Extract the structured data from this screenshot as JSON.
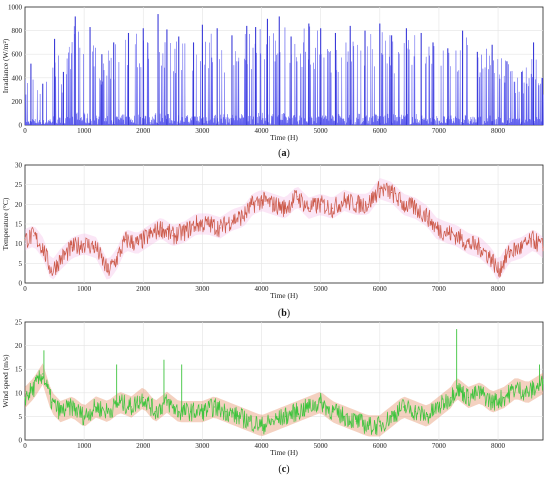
{
  "chart_data": [
    {
      "id": "a",
      "type": "area",
      "caption": "(a)",
      "caption_letter": "a",
      "xlabel": "Time (H)",
      "ylabel": "Irradiance (W/m²)",
      "xlim": [
        0,
        8760
      ],
      "ylim": [
        0,
        1000
      ],
      "xticks": [
        0,
        1000,
        2000,
        3000,
        4000,
        5000,
        6000,
        7000,
        8000
      ],
      "yticks": [
        0,
        200,
        400,
        600,
        800,
        1000
      ],
      "grid": true,
      "color": "#5555ee",
      "daily_peaks": [
        {
          "x": 100,
          "y": 520
        },
        {
          "x": 300,
          "y": 350
        },
        {
          "x": 500,
          "y": 730
        },
        {
          "x": 650,
          "y": 450
        },
        {
          "x": 850,
          "y": 920
        },
        {
          "x": 1100,
          "y": 830
        },
        {
          "x": 1300,
          "y": 600
        },
        {
          "x": 1500,
          "y": 700
        },
        {
          "x": 1750,
          "y": 780
        },
        {
          "x": 2000,
          "y": 820
        },
        {
          "x": 2250,
          "y": 940
        },
        {
          "x": 2400,
          "y": 810
        },
        {
          "x": 2600,
          "y": 750
        },
        {
          "x": 2850,
          "y": 700
        },
        {
          "x": 3000,
          "y": 850
        },
        {
          "x": 3250,
          "y": 820
        },
        {
          "x": 3500,
          "y": 760
        },
        {
          "x": 3750,
          "y": 840
        },
        {
          "x": 3900,
          "y": 830
        },
        {
          "x": 4100,
          "y": 900
        },
        {
          "x": 4300,
          "y": 920
        },
        {
          "x": 4500,
          "y": 750
        },
        {
          "x": 4800,
          "y": 860
        },
        {
          "x": 5000,
          "y": 820
        },
        {
          "x": 5250,
          "y": 780
        },
        {
          "x": 5500,
          "y": 840
        },
        {
          "x": 5750,
          "y": 800
        },
        {
          "x": 6000,
          "y": 860
        },
        {
          "x": 6200,
          "y": 760
        },
        {
          "x": 6450,
          "y": 820
        },
        {
          "x": 6700,
          "y": 780
        },
        {
          "x": 6900,
          "y": 700
        },
        {
          "x": 7150,
          "y": 650
        },
        {
          "x": 7400,
          "y": 800
        },
        {
          "x": 7650,
          "y": 620
        },
        {
          "x": 7900,
          "y": 680
        },
        {
          "x": 8150,
          "y": 540
        },
        {
          "x": 8400,
          "y": 450
        },
        {
          "x": 8600,
          "y": 700
        },
        {
          "x": 8750,
          "y": 400
        }
      ]
    },
    {
      "id": "b",
      "type": "line",
      "caption": "(b)",
      "caption_letter": "b",
      "xlabel": "Time (H)",
      "ylabel": "Temperature (°C)",
      "xlim": [
        0,
        8760
      ],
      "ylim": [
        0,
        30
      ],
      "xticks": [
        0,
        1000,
        2000,
        3000,
        4000,
        5000,
        6000,
        7000,
        8000
      ],
      "yticks": [
        0,
        5,
        10,
        15,
        20,
        25,
        30
      ],
      "grid": true,
      "color": "#cc5a4a",
      "envelope_color": "#f3b8e4",
      "series": [
        {
          "x": 0,
          "y": 11
        },
        {
          "x": 150,
          "y": 12
        },
        {
          "x": 300,
          "y": 9
        },
        {
          "x": 450,
          "y": 3
        },
        {
          "x": 600,
          "y": 6
        },
        {
          "x": 800,
          "y": 9
        },
        {
          "x": 1000,
          "y": 10
        },
        {
          "x": 1200,
          "y": 9
        },
        {
          "x": 1400,
          "y": 3
        },
        {
          "x": 1550,
          "y": 6
        },
        {
          "x": 1700,
          "y": 11
        },
        {
          "x": 1900,
          "y": 10
        },
        {
          "x": 2100,
          "y": 12
        },
        {
          "x": 2300,
          "y": 14
        },
        {
          "x": 2500,
          "y": 12
        },
        {
          "x": 2700,
          "y": 13
        },
        {
          "x": 2900,
          "y": 15
        },
        {
          "x": 3100,
          "y": 15
        },
        {
          "x": 3300,
          "y": 14
        },
        {
          "x": 3500,
          "y": 16
        },
        {
          "x": 3700,
          "y": 17
        },
        {
          "x": 3850,
          "y": 20
        },
        {
          "x": 4000,
          "y": 21
        },
        {
          "x": 4200,
          "y": 20
        },
        {
          "x": 4400,
          "y": 19
        },
        {
          "x": 4600,
          "y": 22
        },
        {
          "x": 4800,
          "y": 19
        },
        {
          "x": 5000,
          "y": 20
        },
        {
          "x": 5200,
          "y": 19
        },
        {
          "x": 5400,
          "y": 21
        },
        {
          "x": 5600,
          "y": 20
        },
        {
          "x": 5800,
          "y": 20
        },
        {
          "x": 6000,
          "y": 24
        },
        {
          "x": 6200,
          "y": 23
        },
        {
          "x": 6400,
          "y": 20
        },
        {
          "x": 6600,
          "y": 19
        },
        {
          "x": 6800,
          "y": 17
        },
        {
          "x": 6950,
          "y": 14
        },
        {
          "x": 7100,
          "y": 13
        },
        {
          "x": 7300,
          "y": 12
        },
        {
          "x": 7500,
          "y": 10
        },
        {
          "x": 7700,
          "y": 9
        },
        {
          "x": 7900,
          "y": 6
        },
        {
          "x": 8000,
          "y": 3
        },
        {
          "x": 8200,
          "y": 8
        },
        {
          "x": 8400,
          "y": 9
        },
        {
          "x": 8600,
          "y": 11
        },
        {
          "x": 8760,
          "y": 9
        }
      ]
    },
    {
      "id": "c",
      "type": "line",
      "caption": "(c)",
      "caption_letter": "c",
      "xlabel": "Time (H)",
      "ylabel": "Wind speed (m/s)",
      "xlim": [
        0,
        8760
      ],
      "ylim": [
        0,
        25
      ],
      "xticks": [
        0,
        1000,
        2000,
        3000,
        4000,
        5000,
        6000,
        7000,
        8000
      ],
      "yticks": [
        0,
        5,
        10,
        15,
        20,
        25
      ],
      "grid": true,
      "color": "#3ec43e",
      "envelope_color": "#e07a4a",
      "series": [
        {
          "x": 0,
          "y": 9
        },
        {
          "x": 150,
          "y": 11
        },
        {
          "x": 300,
          "y": 14
        },
        {
          "x": 450,
          "y": 8
        },
        {
          "x": 600,
          "y": 6
        },
        {
          "x": 800,
          "y": 7
        },
        {
          "x": 1000,
          "y": 5
        },
        {
          "x": 1200,
          "y": 7
        },
        {
          "x": 1400,
          "y": 6
        },
        {
          "x": 1600,
          "y": 8
        },
        {
          "x": 1800,
          "y": 7
        },
        {
          "x": 2000,
          "y": 9
        },
        {
          "x": 2200,
          "y": 6
        },
        {
          "x": 2400,
          "y": 8
        },
        {
          "x": 2600,
          "y": 6
        },
        {
          "x": 2800,
          "y": 6
        },
        {
          "x": 3000,
          "y": 6
        },
        {
          "x": 3200,
          "y": 7
        },
        {
          "x": 3400,
          "y": 6
        },
        {
          "x": 3600,
          "y": 5
        },
        {
          "x": 3800,
          "y": 4
        },
        {
          "x": 4000,
          "y": 3
        },
        {
          "x": 4200,
          "y": 4
        },
        {
          "x": 4400,
          "y": 5
        },
        {
          "x": 4600,
          "y": 6
        },
        {
          "x": 4800,
          "y": 7
        },
        {
          "x": 5000,
          "y": 8
        },
        {
          "x": 5200,
          "y": 6
        },
        {
          "x": 5400,
          "y": 5
        },
        {
          "x": 5600,
          "y": 4
        },
        {
          "x": 5800,
          "y": 3
        },
        {
          "x": 6000,
          "y": 3
        },
        {
          "x": 6200,
          "y": 5
        },
        {
          "x": 6400,
          "y": 7
        },
        {
          "x": 6600,
          "y": 6
        },
        {
          "x": 6800,
          "y": 5
        },
        {
          "x": 7000,
          "y": 7
        },
        {
          "x": 7200,
          "y": 9
        },
        {
          "x": 7300,
          "y": 11
        },
        {
          "x": 7500,
          "y": 9
        },
        {
          "x": 7700,
          "y": 10
        },
        {
          "x": 7900,
          "y": 8
        },
        {
          "x": 8100,
          "y": 9
        },
        {
          "x": 8300,
          "y": 11
        },
        {
          "x": 8500,
          "y": 10
        },
        {
          "x": 8760,
          "y": 12
        }
      ],
      "spikes": [
        {
          "x": 320,
          "y": 19
        },
        {
          "x": 1550,
          "y": 16
        },
        {
          "x": 2350,
          "y": 17
        },
        {
          "x": 2650,
          "y": 16
        },
        {
          "x": 7300,
          "y": 23.5
        },
        {
          "x": 8700,
          "y": 16
        }
      ]
    }
  ]
}
